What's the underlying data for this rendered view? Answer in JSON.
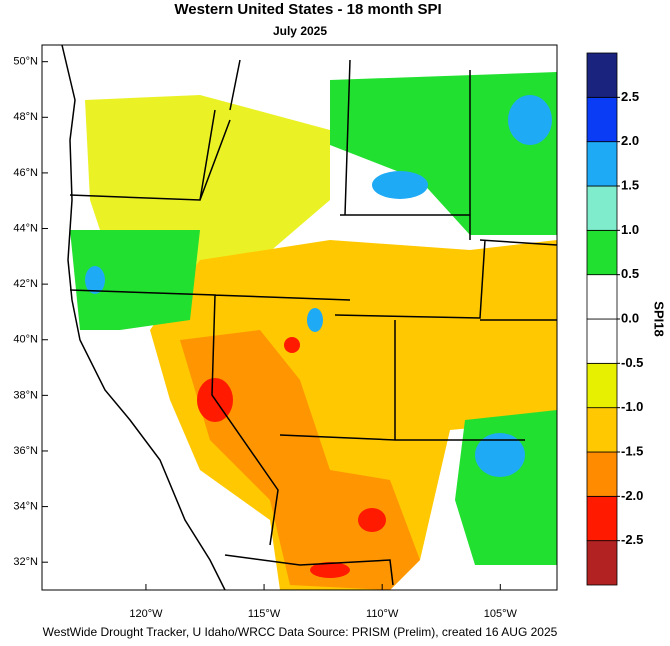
{
  "title": "Western United States - 18 month SPI",
  "subtitle": "July 2025",
  "map": {
    "lonlim": [
      -124.4,
      -102.6
    ],
    "latlim": [
      31.0,
      50.6
    ],
    "lonticks": [
      {
        "value": -120,
        "label": "120°W"
      },
      {
        "value": -115,
        "label": "115°W"
      },
      {
        "value": -110,
        "label": "110°W"
      },
      {
        "value": -105,
        "label": "105°W"
      }
    ],
    "latticks": [
      {
        "value": 50,
        "label": "50°N"
      },
      {
        "value": 48,
        "label": "48°N"
      },
      {
        "value": 46,
        "label": "46°N"
      },
      {
        "value": 44,
        "label": "44°N"
      },
      {
        "value": 42,
        "label": "42°N"
      },
      {
        "value": 40,
        "label": "40°N"
      },
      {
        "value": 38,
        "label": "38°N"
      },
      {
        "value": 36,
        "label": "36°N"
      },
      {
        "value": 34,
        "label": "34°N"
      },
      {
        "value": 32,
        "label": "32°N"
      }
    ]
  },
  "colorbar": {
    "title": "SPI18",
    "lim": [
      -3,
      3
    ],
    "colors": [
      "#b22222",
      "#ff1a00",
      "#ff8c00",
      "#ffc800",
      "#e6f000",
      "#ffffff",
      "#ffffff",
      "#22e030",
      "#7feccc",
      "#1eaaf5",
      "#0a3cf5",
      "#1a237e"
    ],
    "ticks": [
      {
        "value": -2.5,
        "label": "-2.5"
      },
      {
        "value": -2,
        "label": "-2.0"
      },
      {
        "value": -1.5,
        "label": "-1.5"
      },
      {
        "value": -1,
        "label": "-1.0"
      },
      {
        "value": -0.5,
        "label": "-0.5"
      },
      {
        "value": 0,
        "label": "0.0"
      },
      {
        "value": 0.5,
        "label": "0.5"
      },
      {
        "value": 1,
        "label": "1.0"
      },
      {
        "value": 1.5,
        "label": "1.5"
      },
      {
        "value": 2,
        "label": "2.0"
      },
      {
        "value": 2.5,
        "label": "2.5"
      }
    ]
  },
  "footer": "WestWide Drought Tracker, U Idaho/WRCC Data Source: PRISM (Prelim), created 16 AUG 2025"
}
